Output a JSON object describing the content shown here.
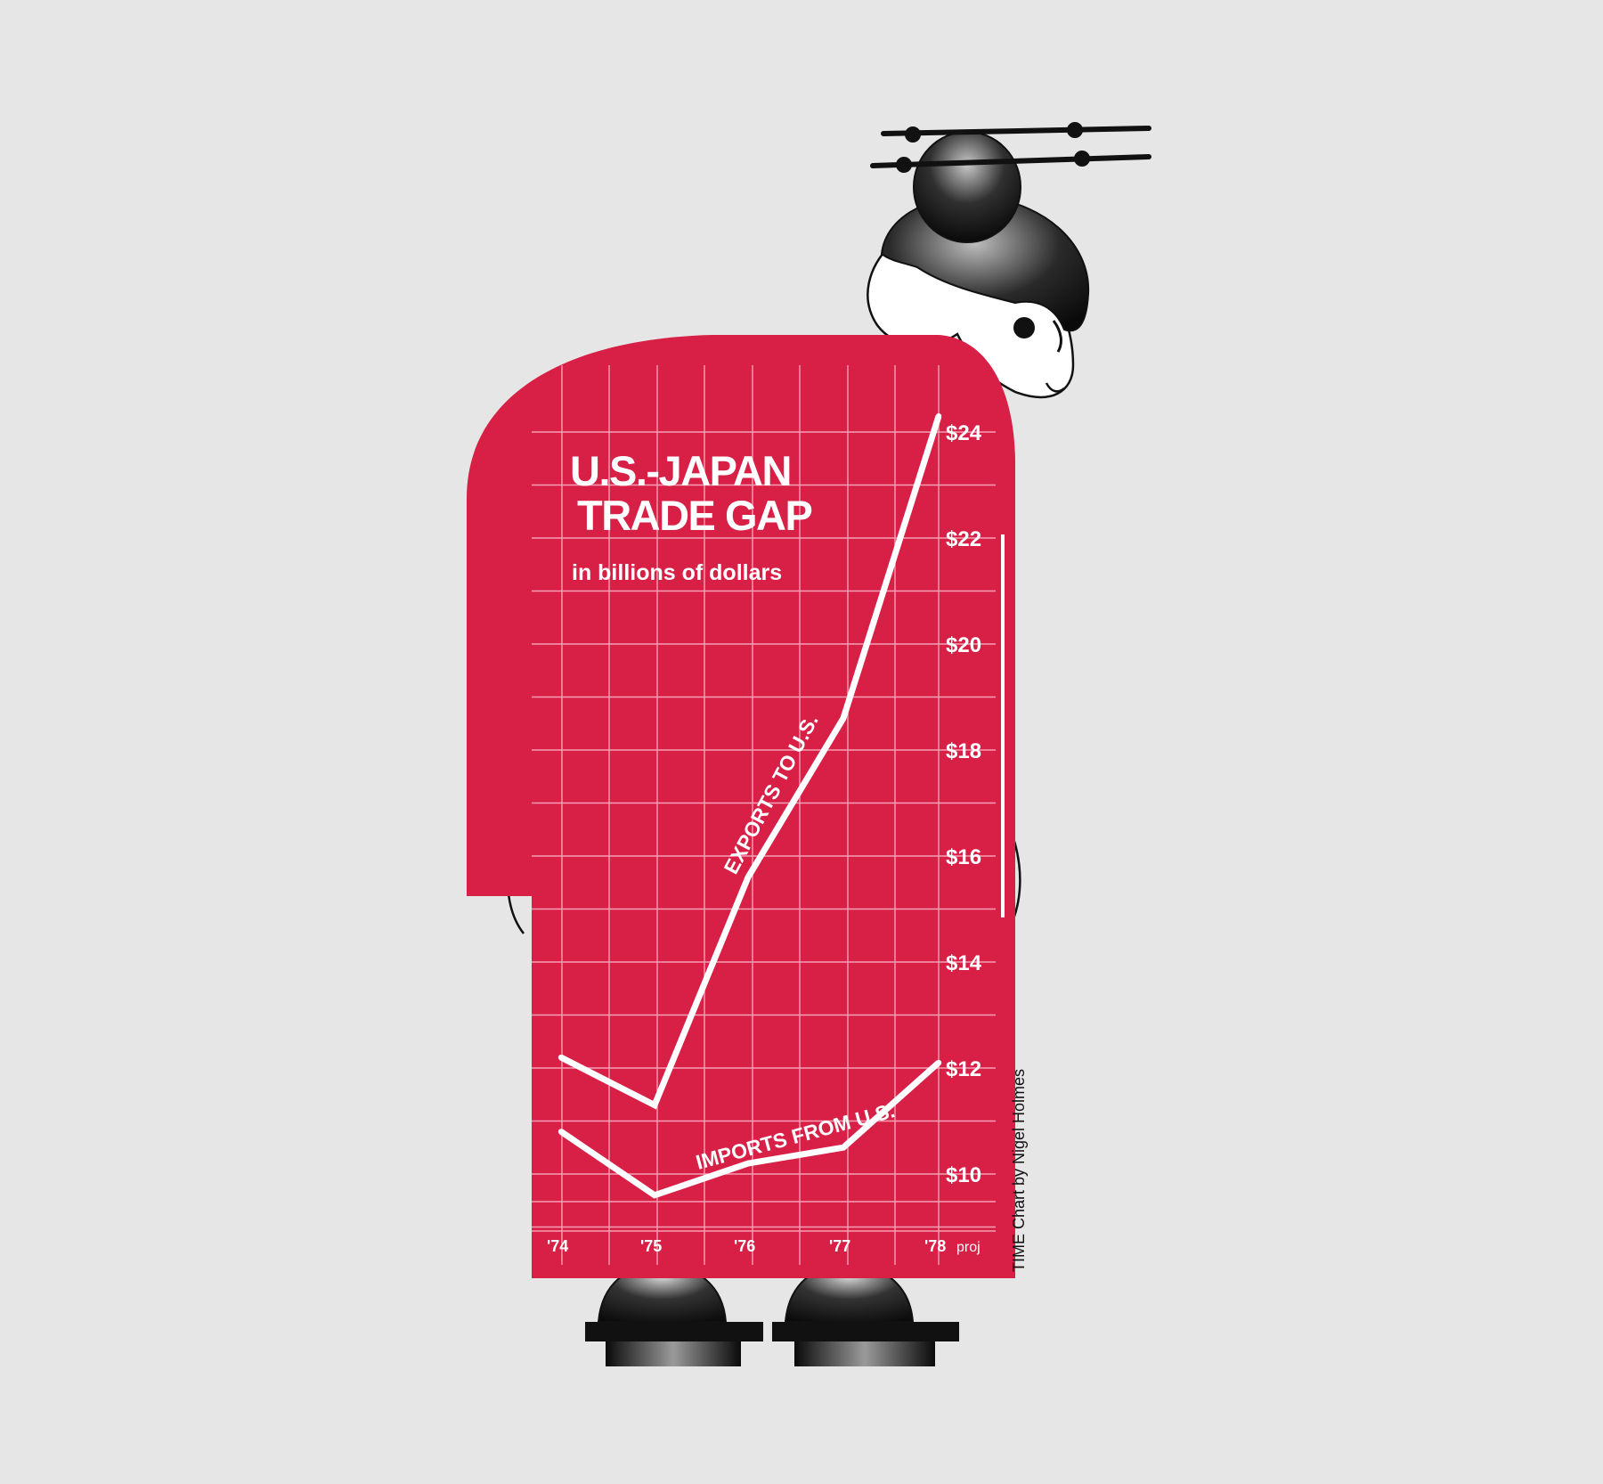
{
  "chart_data": {
    "type": "line",
    "title": "U.S.-JAPAN TRADE GAP",
    "title_lines": [
      "U.S.-JAPAN",
      "TRADE GAP"
    ],
    "subtitle": "in billions of dollars",
    "categories": [
      "'74",
      "'75",
      "'76",
      "'77",
      "'78"
    ],
    "x_suffix_last": "proj",
    "series": [
      {
        "name": "EXPORTS TO U.S.",
        "values": [
          12.2,
          11.3,
          15.6,
          18.6,
          24.3
        ]
      },
      {
        "name": "IMPORTS FROM U.S.",
        "values": [
          10.8,
          9.6,
          10.2,
          10.5,
          12.1
        ]
      }
    ],
    "y_ticks": [
      10,
      12,
      14,
      16,
      18,
      20,
      22,
      24
    ],
    "y_tick_labels": [
      "$10",
      "$12",
      "$14",
      "$16",
      "$18",
      "$20",
      "$22",
      "$24"
    ],
    "ylim": [
      8.8,
      25
    ],
    "grid": true,
    "colors": {
      "background": "#e6e6e6",
      "garment": "#d81f46",
      "line": "#ffffff",
      "ink": "#111111"
    },
    "credit": "TIME Chart by Nigel Holmes"
  }
}
